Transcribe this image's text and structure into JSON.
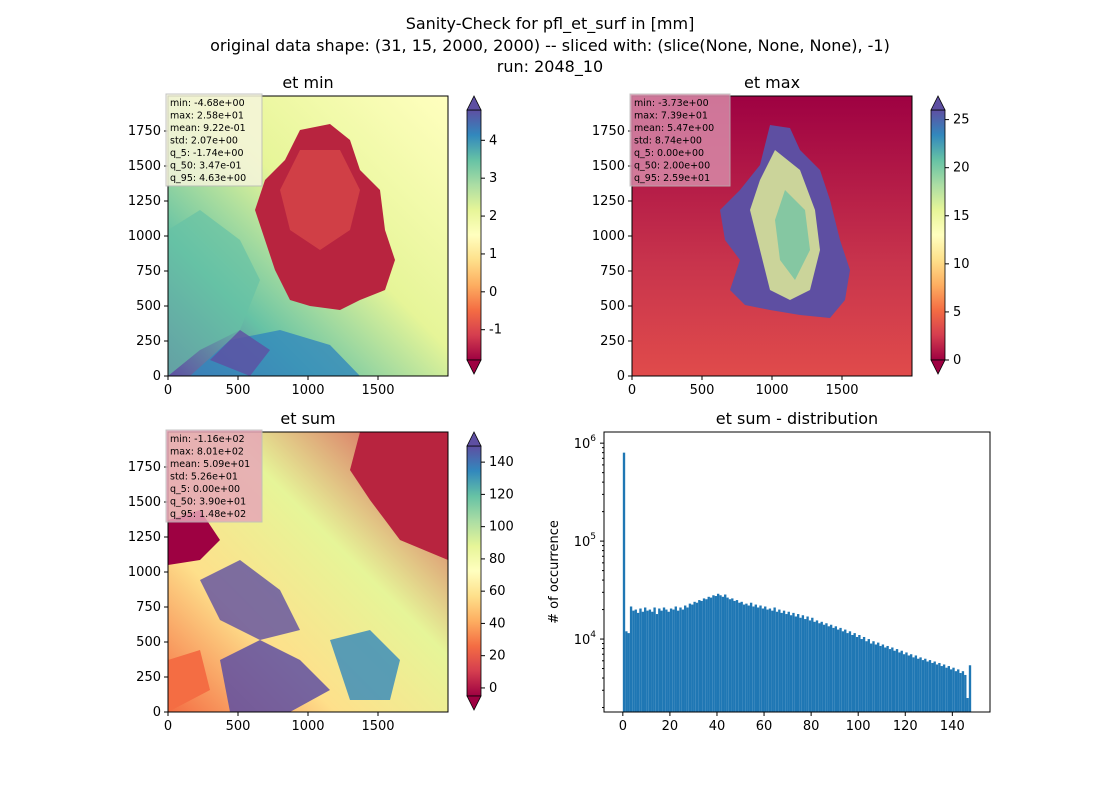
{
  "figure": {
    "suptitle_line1": "Sanity-Check for pfl_et_surf in [mm]",
    "suptitle_line2": "original data shape: (31, 15, 2000, 2000) -- sliced with: (slice(None, None, None), -1)",
    "suptitle_line3": "run: 2048_10"
  },
  "chart_data": [
    {
      "type": "heatmap",
      "title": "et min",
      "cmap": "Spectral",
      "colorbar": {
        "range": [
          -1.8,
          4.8
        ],
        "ticks": [
          -1,
          0,
          1,
          2,
          3,
          4
        ],
        "extend": "both"
      },
      "x_ticks": [
        0,
        500,
        1000,
        1500
      ],
      "y_ticks": [
        0,
        250,
        500,
        750,
        1000,
        1250,
        1500,
        1750
      ],
      "xlim": [
        0,
        2000
      ],
      "ylim": [
        0,
        2000
      ],
      "stats": [
        "min: -4.68e+00",
        "max: 2.58e+01",
        "mean: 9.22e-01",
        "std: 2.07e+00",
        "q_5: -1.74e+00",
        "q_50: 3.47e-01",
        "q_95: 4.63e+00"
      ],
      "stats_box_color": "#f5f5dc"
    },
    {
      "type": "heatmap",
      "title": "et max",
      "cmap": "Spectral",
      "colorbar": {
        "range": [
          0,
          26
        ],
        "ticks": [
          0,
          5,
          10,
          15,
          20,
          25
        ],
        "extend": "both"
      },
      "x_ticks": [
        0,
        500,
        1000,
        1500
      ],
      "y_ticks": [
        0,
        250,
        500,
        750,
        1000,
        1250,
        1500,
        1750
      ],
      "xlim": [
        0,
        2000
      ],
      "ylim": [
        0,
        2000
      ],
      "stats": [
        "min: -3.73e+00",
        "max: 7.39e+01",
        "mean: 5.47e+00",
        "std: 8.74e+00",
        "q_5: 0.00e+00",
        "q_50: 2.00e+00",
        "q_95: 2.59e+01"
      ],
      "stats_box_color": "#d88aa8"
    },
    {
      "type": "heatmap",
      "title": "et sum",
      "cmap": "Spectral",
      "colorbar": {
        "range": [
          -5,
          150
        ],
        "ticks": [
          0,
          20,
          40,
          60,
          80,
          100,
          120,
          140
        ],
        "extend": "both"
      },
      "x_ticks": [
        0,
        500,
        1000,
        1500
      ],
      "y_ticks": [
        0,
        250,
        500,
        750,
        1000,
        1250,
        1500,
        1750
      ],
      "xlim": [
        0,
        2000
      ],
      "ylim": [
        0,
        2000
      ],
      "stats": [
        "min: -1.16e+02",
        "max: 8.01e+02",
        "mean: 5.09e+01",
        "std: 5.26e+01",
        "q_5: 0.00e+00",
        "q_50: 3.90e+01",
        "q_95: 1.48e+02"
      ],
      "stats_box_color": "#e7a7b8"
    },
    {
      "type": "bar",
      "title": "et sum - distribution",
      "ylabel": "# of occurrence",
      "yscale": "log",
      "ylim": [
        1800,
        1300000
      ],
      "xlim": [
        -8,
        156
      ],
      "x_ticks": [
        0,
        20,
        40,
        60,
        80,
        100,
        120,
        140
      ],
      "y_ticks": [
        10000,
        100000,
        1000000
      ],
      "y_tick_labels": [
        "10^4",
        "10^5",
        "10^6"
      ],
      "bar_color": "#1f77b4",
      "bin_width": 1,
      "x": [
        0,
        1,
        2,
        3,
        4,
        5,
        6,
        7,
        8,
        9,
        10,
        11,
        12,
        13,
        14,
        15,
        16,
        17,
        18,
        19,
        20,
        21,
        22,
        23,
        24,
        25,
        26,
        27,
        28,
        29,
        30,
        31,
        32,
        33,
        34,
        35,
        36,
        37,
        38,
        39,
        40,
        41,
        42,
        43,
        44,
        45,
        46,
        47,
        48,
        49,
        50,
        51,
        52,
        53,
        54,
        55,
        56,
        57,
        58,
        59,
        60,
        61,
        62,
        63,
        64,
        65,
        66,
        67,
        68,
        69,
        70,
        71,
        72,
        73,
        74,
        75,
        76,
        77,
        78,
        79,
        80,
        81,
        82,
        83,
        84,
        85,
        86,
        87,
        88,
        89,
        90,
        91,
        92,
        93,
        94,
        95,
        96,
        97,
        98,
        99,
        100,
        101,
        102,
        103,
        104,
        105,
        106,
        107,
        108,
        109,
        110,
        111,
        112,
        113,
        114,
        115,
        116,
        117,
        118,
        119,
        120,
        121,
        122,
        123,
        124,
        125,
        126,
        127,
        128,
        129,
        130,
        131,
        132,
        133,
        134,
        135,
        136,
        137,
        138,
        139,
        140,
        141,
        142,
        143,
        144,
        145,
        146,
        147
      ],
      "values": [
        800000,
        12000,
        11500,
        21500,
        19500,
        20000,
        18500,
        20500,
        19000,
        21000,
        19500,
        20000,
        19000,
        21000,
        18000,
        20500,
        19500,
        21000,
        20000,
        19000,
        20500,
        20000,
        21500,
        19500,
        21000,
        20000,
        22000,
        21000,
        23000,
        22500,
        24000,
        23500,
        25000,
        24500,
        26000,
        25500,
        27000,
        26500,
        28000,
        27500,
        29000,
        28000,
        27000,
        28500,
        26500,
        25500,
        26000,
        24500,
        25000,
        23500,
        24000,
        22500,
        23000,
        22000,
        23500,
        21500,
        22500,
        21000,
        22000,
        20500,
        21500,
        20000,
        20500,
        19500,
        21000,
        19000,
        20000,
        18500,
        19500,
        18000,
        19000,
        17500,
        18500,
        17000,
        18000,
        16500,
        17500,
        16000,
        17000,
        15500,
        16500,
        15000,
        15500,
        14500,
        15000,
        14000,
        14500,
        13500,
        14000,
        13000,
        13500,
        12500,
        13000,
        12000,
        12500,
        11500,
        12000,
        11000,
        11500,
        10500,
        11000,
        10000,
        10500,
        9500,
        10000,
        9000,
        9500,
        8800,
        9200,
        8500,
        8800,
        8200,
        8500,
        7900,
        8200,
        7600,
        7900,
        7300,
        7600,
        7000,
        7300,
        6800,
        7000,
        6500,
        6800,
        6300,
        6500,
        6100,
        6300,
        5900,
        6100,
        5700,
        5900,
        5500,
        5700,
        5300,
        5500,
        5100,
        5300,
        4900,
        5100,
        4700,
        4900,
        4500,
        4700,
        4300,
        2500,
        5400
      ]
    }
  ]
}
